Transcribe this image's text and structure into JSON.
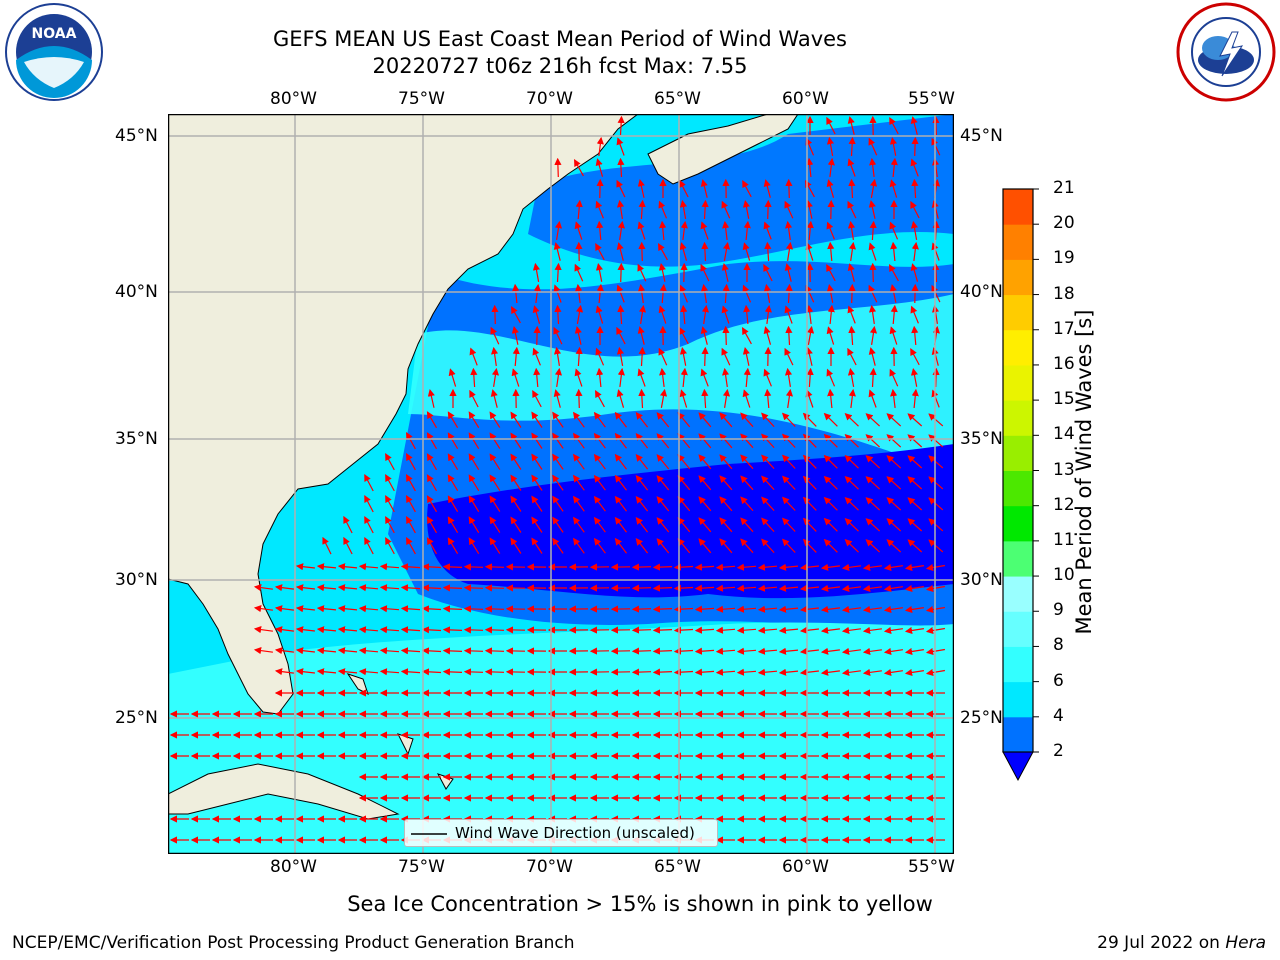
{
  "header": {
    "title_line1": "GEFS MEAN US East Coast Mean Period of Wind Waves",
    "title_line2": "20220727 t06z 216h fcst   Max: 7.55"
  },
  "logos": {
    "left": {
      "name": "NOAA",
      "text": "NOAA"
    },
    "right": {
      "name": "National Weather Service"
    }
  },
  "map": {
    "lon_labels": [
      "80°W",
      "75°W",
      "70°W",
      "65°W",
      "60°W",
      "55°W"
    ],
    "lat_labels": [
      "45°N",
      "40°N",
      "35°N",
      "30°N",
      "25°N"
    ],
    "legend_label": "Wind Wave Direction (unscaled)",
    "arrow_color": "#ff0000",
    "land_color": "#efeedd"
  },
  "colorbar": {
    "label": "Mean Period of Wind Waves [s]",
    "ticks": [
      "2",
      "4",
      "6",
      "8",
      "9",
      "10",
      "11",
      "12",
      "13",
      "14",
      "15",
      "16",
      "17",
      "18",
      "19",
      "20",
      "21"
    ],
    "colors": [
      "#0072ff",
      "#00e8ff",
      "#33ffff",
      "#66ffff",
      "#99ffff",
      "#4cff73",
      "#00e800",
      "#4ce800",
      "#99ee00",
      "#ccf600",
      "#eaf300",
      "#ffee00",
      "#ffcc00",
      "#ffa200",
      "#ff8000",
      "#ff5000",
      "#ff2200",
      "#ff0000"
    ],
    "extend_color": "#0000ff"
  },
  "notes": {
    "sea_ice": "Sea Ice Concentration > 15% is shown in pink to yellow"
  },
  "footer": {
    "left": "NCEP/EMC/Verification Post Processing Product Generation Branch",
    "date": "29 Jul 2022 on ",
    "machine": "Hera"
  }
}
